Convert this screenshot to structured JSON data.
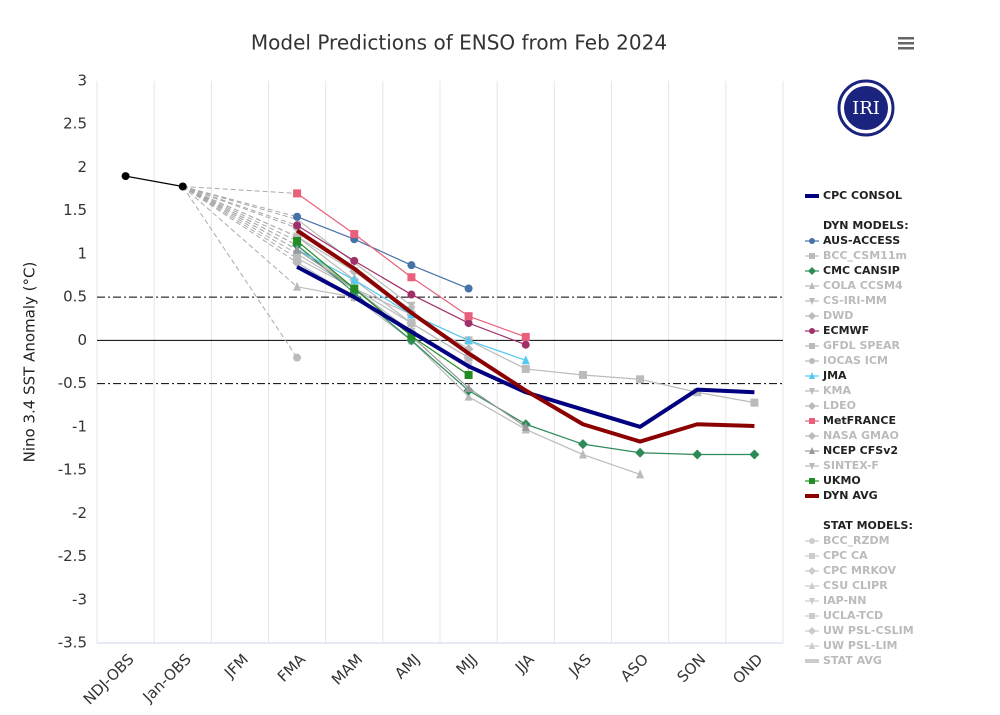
{
  "chart_data": {
    "type": "line",
    "title": "Model Predictions of ENSO from Feb 2024",
    "y_label": "Nino 3.4 SST Anomaly (°C)",
    "logo": "IRI",
    "categories": [
      "NDJ-OBS",
      "Jan-OBS",
      "JFM",
      "FMA",
      "MAM",
      "AMJ",
      "MJJ",
      "JJA",
      "JAS",
      "ASO",
      "SON",
      "OND"
    ],
    "ylim": [
      -3.5,
      3
    ],
    "yticks": [
      3,
      2.5,
      2,
      1.5,
      1,
      0.5,
      0,
      -0.5,
      -1,
      -1.5,
      -2,
      -2.5,
      -3,
      -3.5
    ],
    "reference_lines": [
      0.5,
      0,
      -0.5
    ],
    "observed": {
      "color": "#000000",
      "marker": "circle",
      "values": [
        1.9,
        1.78,
        null,
        null,
        null,
        null,
        null,
        null,
        null,
        null,
        null,
        null
      ]
    },
    "consol": {
      "name": "CPC CONSOL",
      "color": "#000080",
      "line_width": 4,
      "values": [
        null,
        null,
        null,
        0.85,
        0.5,
        0.1,
        -0.3,
        -0.6,
        -0.8,
        -1.0,
        -0.57,
        -0.6
      ]
    },
    "dyn_models": {
      "heading": "DYN MODELS:",
      "series": [
        {
          "name": "AUS-ACCESS",
          "color": "#4572a7",
          "marker": "circle",
          "values": [
            null,
            null,
            null,
            1.43,
            1.17,
            0.87,
            0.6,
            null,
            null,
            null,
            null,
            null
          ]
        },
        {
          "name": "BCC_CSM11m",
          "color": "#bbbbbb",
          "muted": true,
          "marker": "square",
          "values": [
            null,
            null,
            null,
            1.0,
            0.6,
            0.3,
            0.0,
            -0.33,
            -0.4,
            -0.45,
            -0.6,
            -0.72
          ]
        },
        {
          "name": "CMC CANSIP",
          "color": "#2e8b57",
          "marker": "diamond",
          "values": [
            null,
            null,
            null,
            1.1,
            0.55,
            0.0,
            -0.58,
            -0.97,
            -1.2,
            -1.3,
            -1.32,
            -1.32
          ]
        },
        {
          "name": "COLA CCSM4",
          "color": "#bbbbbb",
          "muted": true,
          "marker": "triangle",
          "values": [
            null,
            null,
            null,
            0.62,
            0.5,
            0.0,
            -0.65,
            -1.03,
            -1.32,
            -1.55,
            null,
            null
          ]
        },
        {
          "name": "CS-IRI-MM",
          "color": "#bbbbbb",
          "muted": true,
          "marker": "triangle-down",
          "values": [
            null,
            null,
            null,
            1.1,
            0.6,
            0.1,
            -0.3,
            null,
            null,
            null,
            null,
            null
          ]
        },
        {
          "name": "DWD",
          "color": "#bbbbbb",
          "muted": true,
          "marker": "diamond",
          "values": [
            null,
            null,
            null,
            1.2,
            0.7,
            0.2,
            -0.2,
            null,
            null,
            null,
            null,
            null
          ]
        },
        {
          "name": "ECMWF",
          "color": "#a0306a",
          "marker": "circle",
          "values": [
            null,
            null,
            null,
            1.33,
            0.92,
            0.53,
            0.2,
            -0.05,
            null,
            null,
            null,
            null
          ]
        },
        {
          "name": "GFDL SPEAR",
          "color": "#bbbbbb",
          "muted": true,
          "marker": "square",
          "values": [
            null,
            null,
            null,
            0.95,
            0.6,
            0.2,
            -0.2,
            null,
            null,
            null,
            null,
            null
          ]
        },
        {
          "name": "IOCAS ICM",
          "color": "#bbbbbb",
          "muted": true,
          "marker": "circle",
          "values": [
            null,
            null,
            null,
            -0.2,
            null,
            null,
            null,
            null,
            null,
            null,
            null,
            null
          ]
        },
        {
          "name": "JMA",
          "color": "#55c8f0",
          "marker": "triangle",
          "values": [
            null,
            null,
            null,
            1.05,
            0.7,
            0.3,
            0.0,
            -0.23,
            null,
            null,
            null,
            null
          ]
        },
        {
          "name": "KMA",
          "color": "#bbbbbb",
          "muted": true,
          "marker": "triangle-down",
          "values": [
            null,
            null,
            null,
            1.2,
            0.8,
            0.35,
            null,
            null,
            null,
            null,
            null,
            null
          ]
        },
        {
          "name": "LDEO",
          "color": "#bbbbbb",
          "muted": true,
          "marker": "diamond",
          "values": [
            null,
            null,
            null,
            0.9,
            0.5,
            0.1,
            null,
            null,
            null,
            null,
            null,
            null
          ]
        },
        {
          "name": "MetFRANCE",
          "color": "#e8607a",
          "marker": "square",
          "values": [
            null,
            null,
            null,
            1.7,
            1.23,
            0.73,
            0.28,
            0.04,
            null,
            null,
            null,
            null
          ]
        },
        {
          "name": "NASA GMAO",
          "color": "#bbbbbb",
          "muted": true,
          "marker": "diamond",
          "values": [
            null,
            null,
            null,
            1.3,
            0.8,
            0.3,
            -0.1,
            null,
            null,
            null,
            null,
            null
          ]
        },
        {
          "name": "NCEP CFSv2",
          "color": "#999999",
          "marker": "triangle",
          "values": [
            null,
            null,
            null,
            1.05,
            0.6,
            0.05,
            -0.55,
            -1.0,
            null,
            null,
            null,
            null
          ]
        },
        {
          "name": "SINTEX-F",
          "color": "#bbbbbb",
          "muted": true,
          "marker": "triangle-down",
          "values": [
            null,
            null,
            null,
            1.4,
            0.9,
            0.4,
            null,
            null,
            null,
            null,
            null,
            null
          ]
        },
        {
          "name": "UKMO",
          "color": "#228b22",
          "marker": "square",
          "values": [
            null,
            null,
            null,
            1.15,
            0.6,
            0.05,
            -0.4,
            null,
            null,
            null,
            null,
            null
          ]
        },
        {
          "name": "DYN AVG",
          "color": "#8b0000",
          "line_width": 4,
          "values": [
            null,
            null,
            null,
            1.27,
            0.83,
            0.32,
            -0.15,
            -0.58,
            -0.97,
            -1.17,
            -0.97,
            -0.99
          ]
        }
      ]
    },
    "stat_models": {
      "heading": "STAT MODELS:",
      "series": [
        {
          "name": "BCC_RZDM",
          "color": "#cccccc",
          "muted": true,
          "marker": "circle",
          "values": [
            null,
            null,
            null,
            null,
            null,
            null,
            null,
            null,
            null,
            null,
            null,
            null
          ]
        },
        {
          "name": "CPC CA",
          "color": "#cccccc",
          "muted": true,
          "marker": "square",
          "values": [
            null,
            null,
            null,
            null,
            null,
            null,
            null,
            null,
            null,
            null,
            null,
            null
          ]
        },
        {
          "name": "CPC MRKOV",
          "color": "#cccccc",
          "muted": true,
          "marker": "diamond",
          "values": [
            null,
            null,
            null,
            null,
            null,
            null,
            null,
            null,
            null,
            null,
            null,
            null
          ]
        },
        {
          "name": "CSU CLIPR",
          "color": "#cccccc",
          "muted": true,
          "marker": "triangle",
          "values": [
            null,
            null,
            null,
            null,
            null,
            null,
            null,
            null,
            null,
            null,
            null,
            null
          ]
        },
        {
          "name": "IAP-NN",
          "color": "#cccccc",
          "muted": true,
          "marker": "triangle-down",
          "values": [
            null,
            null,
            null,
            null,
            null,
            null,
            null,
            null,
            null,
            null,
            null,
            null
          ]
        },
        {
          "name": "UCLA-TCD",
          "color": "#cccccc",
          "muted": true,
          "marker": "square",
          "values": [
            null,
            null,
            null,
            null,
            null,
            null,
            null,
            null,
            null,
            null,
            null,
            null
          ]
        },
        {
          "name": "UW PSL-CSLIM",
          "color": "#cccccc",
          "muted": true,
          "marker": "diamond",
          "values": [
            null,
            null,
            null,
            null,
            null,
            null,
            null,
            null,
            null,
            null,
            null,
            null
          ]
        },
        {
          "name": "UW PSL-LIM",
          "color": "#cccccc",
          "muted": true,
          "marker": "triangle",
          "values": [
            null,
            null,
            null,
            null,
            null,
            null,
            null,
            null,
            null,
            null,
            null,
            null
          ]
        },
        {
          "name": "STAT AVG",
          "color": "#cccccc",
          "muted": true,
          "line_width": 4,
          "values": [
            null,
            null,
            null,
            null,
            null,
            null,
            null,
            null,
            null,
            null,
            null,
            null
          ]
        }
      ]
    }
  }
}
